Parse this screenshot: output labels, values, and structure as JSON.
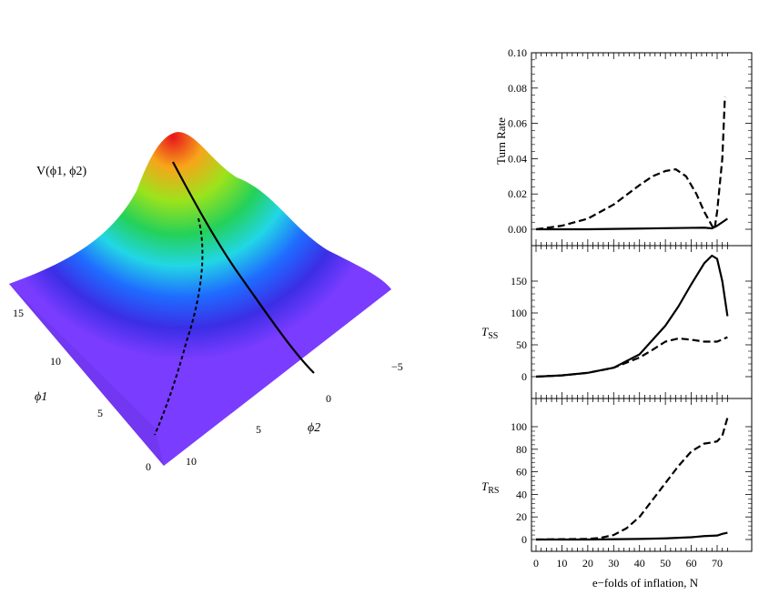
{
  "surface_plot": {
    "z_label": "V(ϕ1, ϕ2)",
    "x_label": "ϕ1",
    "y_label": "ϕ2",
    "phi1_ticks": [
      "0",
      "5",
      "10",
      "15"
    ],
    "phi2_ticks": [
      "10",
      "5",
      "0",
      "−5"
    ],
    "colors": {
      "peak": "#e8141b",
      "plateau": "#7a3cff"
    }
  },
  "chart_data": [
    {
      "type": "line",
      "ylabel": "Turn Rate",
      "xlim": [
        0,
        74
      ],
      "ylim": [
        0,
        0.1
      ],
      "yticks": [
        "0.00",
        "0.02",
        "0.04",
        "0.06",
        "0.08",
        "0.10"
      ],
      "series": [
        {
          "style": "solid",
          "x": [
            0,
            10,
            20,
            30,
            40,
            50,
            60,
            65,
            68,
            70,
            72,
            74
          ],
          "y": [
            0.0,
            0.0,
            0.0,
            0.0002,
            0.0004,
            0.0006,
            0.0008,
            0.0009,
            0.0005,
            0.002,
            0.004,
            0.006
          ]
        },
        {
          "style": "dashed",
          "x": [
            0,
            10,
            20,
            30,
            40,
            45,
            50,
            54,
            58,
            62,
            65,
            68,
            69,
            70,
            72,
            73
          ],
          "y": [
            0.0,
            0.002,
            0.006,
            0.014,
            0.025,
            0.03,
            0.033,
            0.034,
            0.03,
            0.02,
            0.01,
            0.002,
            0.0,
            0.01,
            0.04,
            0.075
          ]
        }
      ]
    },
    {
      "type": "line",
      "ylabel": "TSS",
      "xlim": [
        0,
        74
      ],
      "ylim": [
        0,
        190
      ],
      "yticks": [
        "0",
        "50",
        "100",
        "150"
      ],
      "series": [
        {
          "style": "solid",
          "x": [
            0,
            10,
            20,
            30,
            40,
            50,
            55,
            60,
            65,
            68,
            70,
            72,
            74
          ],
          "y": [
            0,
            2,
            6,
            14,
            35,
            80,
            110,
            145,
            178,
            190,
            185,
            150,
            95
          ]
        },
        {
          "style": "dashed",
          "x": [
            0,
            10,
            20,
            30,
            40,
            45,
            50,
            55,
            60,
            65,
            70,
            74
          ],
          "y": [
            0,
            2,
            6,
            14,
            30,
            42,
            55,
            60,
            58,
            55,
            55,
            62
          ]
        }
      ]
    },
    {
      "type": "line",
      "ylabel": "TRS",
      "xlabel": "e−folds of inflation, N",
      "xlim": [
        0,
        74
      ],
      "ylim": [
        0,
        110
      ],
      "xticks": [
        "0",
        "10",
        "20",
        "30",
        "40",
        "50",
        "60",
        "70"
      ],
      "yticks": [
        "0",
        "20",
        "40",
        "60",
        "80",
        "100"
      ],
      "series": [
        {
          "style": "solid",
          "x": [
            0,
            20,
            40,
            50,
            60,
            65,
            70,
            72,
            74
          ],
          "y": [
            0,
            0,
            0.5,
            1,
            2,
            3,
            3.5,
            5,
            6
          ]
        },
        {
          "style": "dashed",
          "x": [
            0,
            20,
            25,
            30,
            35,
            40,
            45,
            50,
            55,
            60,
            65,
            68,
            70,
            72,
            73,
            74
          ],
          "y": [
            0,
            0.5,
            1.5,
            4,
            10,
            20,
            35,
            50,
            65,
            78,
            85,
            86,
            87,
            92,
            100,
            108
          ]
        }
      ]
    }
  ]
}
